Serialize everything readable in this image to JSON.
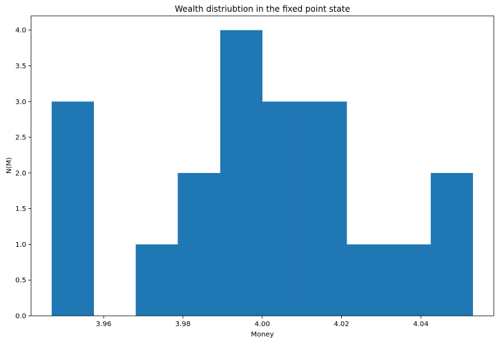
{
  "chart_data": {
    "type": "bar",
    "title": "Wealth distriubtion in the fixed point state",
    "xlabel": "Money",
    "ylabel": "N(M)",
    "bar_color": "#1f77b4",
    "xlim": [
      3.9417,
      4.0584
    ],
    "ylim": [
      0,
      4.2
    ],
    "bins": [
      {
        "x0": 3.9469,
        "x1": 3.9575,
        "count": 3
      },
      {
        "x0": 3.9575,
        "x1": 3.9681,
        "count": 0
      },
      {
        "x0": 3.9681,
        "x1": 3.9787,
        "count": 1
      },
      {
        "x0": 3.9787,
        "x1": 3.9894,
        "count": 2
      },
      {
        "x0": 3.9894,
        "x1": 4.0,
        "count": 4
      },
      {
        "x0": 4.0,
        "x1": 4.0106,
        "count": 3
      },
      {
        "x0": 4.0106,
        "x1": 4.0213,
        "count": 3
      },
      {
        "x0": 4.0213,
        "x1": 4.0319,
        "count": 1
      },
      {
        "x0": 4.0319,
        "x1": 4.0425,
        "count": 1
      },
      {
        "x0": 4.0425,
        "x1": 4.0531,
        "count": 2
      }
    ],
    "x_ticks": [
      {
        "value": 3.96,
        "label": "3.96"
      },
      {
        "value": 3.98,
        "label": "3.98"
      },
      {
        "value": 4.0,
        "label": "4.00"
      },
      {
        "value": 4.02,
        "label": "4.02"
      },
      {
        "value": 4.04,
        "label": "4.04"
      }
    ],
    "y_ticks": [
      {
        "value": 0.0,
        "label": "0.0"
      },
      {
        "value": 0.5,
        "label": "0.5"
      },
      {
        "value": 1.0,
        "label": "1.0"
      },
      {
        "value": 1.5,
        "label": "1.5"
      },
      {
        "value": 2.0,
        "label": "2.0"
      },
      {
        "value": 2.5,
        "label": "2.5"
      },
      {
        "value": 3.0,
        "label": "3.0"
      },
      {
        "value": 3.5,
        "label": "3.5"
      },
      {
        "value": 4.0,
        "label": "4.0"
      }
    ],
    "grid": false,
    "legend": "none"
  }
}
